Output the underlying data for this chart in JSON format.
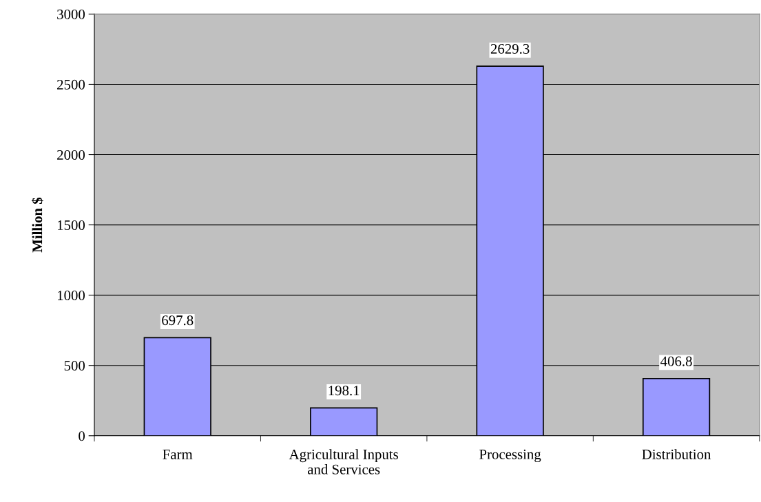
{
  "chart_data": {
    "type": "bar",
    "ylabel": "Million $",
    "categories": [
      "Farm",
      "Agricultural Inputs\nand Services",
      "Processing",
      "Distribution"
    ],
    "values": [
      697.8,
      198.1,
      2629.3,
      406.8
    ],
    "color": "#9999ff",
    "ylim": [
      0,
      3000
    ],
    "yticks": [
      0,
      500,
      1000,
      1500,
      2000,
      2500,
      3000
    ],
    "grid": "y",
    "data_labels": true,
    "legend": false
  }
}
